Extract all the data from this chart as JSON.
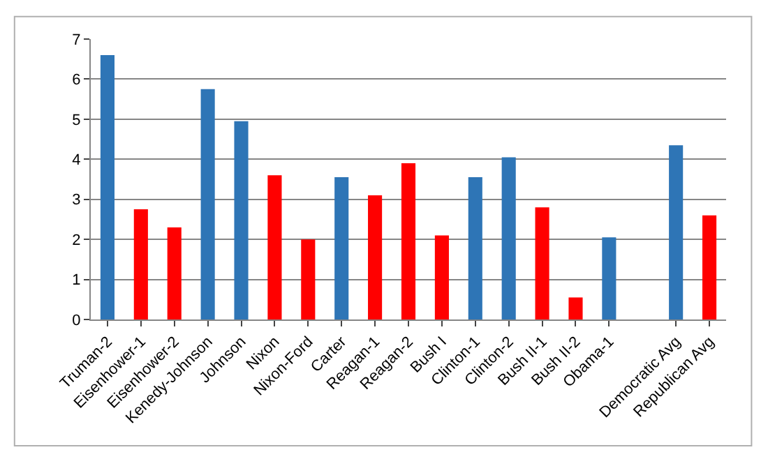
{
  "chart_data": {
    "type": "bar",
    "categories": [
      "Truman-2",
      "Eisenhower-1",
      "Eisenhower-2",
      "Kenedy-Johnson",
      "Johnson",
      "Nixon",
      "Nixon-Ford",
      "Carter",
      "Reagan-1",
      "Reagan-2",
      "Bush I",
      "Clinton-1",
      "Clinton-2",
      "Bush II-1",
      "Bush II-2",
      "Obama-1",
      null,
      "Democratic Avg",
      "Republican Avg"
    ],
    "values": [
      6.6,
      2.75,
      2.3,
      5.75,
      4.95,
      3.6,
      2.0,
      3.55,
      3.1,
      3.9,
      2.1,
      3.55,
      4.05,
      2.8,
      0.55,
      2.05,
      null,
      4.35,
      2.6
    ],
    "colors": [
      "#2e75b6",
      "#ff0000",
      "#ff0000",
      "#2e75b6",
      "#2e75b6",
      "#ff0000",
      "#ff0000",
      "#2e75b6",
      "#ff0000",
      "#ff0000",
      "#ff0000",
      "#2e75b6",
      "#2e75b6",
      "#ff0000",
      "#ff0000",
      "#2e75b6",
      "#2e75b6",
      "#2e75b6",
      "#ff0000"
    ],
    "ylim": [
      0,
      7
    ],
    "yticks": [
      0,
      1,
      2,
      3,
      4,
      5,
      6,
      7
    ],
    "grid": "y"
  }
}
